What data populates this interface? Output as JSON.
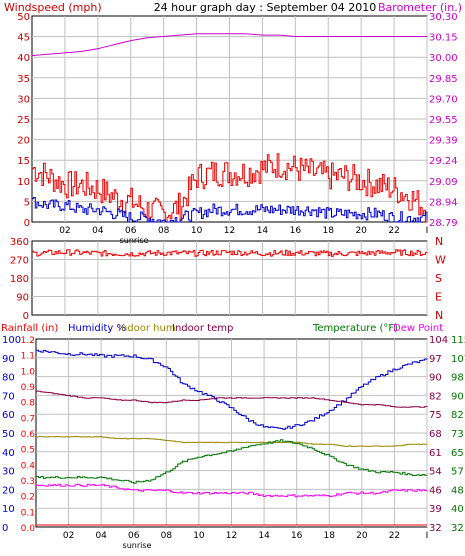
{
  "charts": {
    "wind": {
      "title": "24 hour graph day : September 04 2010",
      "left_label": "Windspeed (mph)",
      "right_label": "Barometer (in.)",
      "left_ticks": [
        "50",
        "45",
        "40",
        "35",
        "30",
        "25",
        "20",
        "15",
        "10",
        "5",
        "0"
      ],
      "right_ticks": [
        "30.30",
        "30.15",
        "30.00",
        "29.85",
        "29.70",
        "29.55",
        "29.39",
        "29.24",
        "29.09",
        "28.94",
        "28.79"
      ],
      "x_ticks": [
        "02",
        "04",
        "06",
        "08",
        "10",
        "12",
        "14",
        "16",
        "18",
        "20",
        "22",
        "I"
      ],
      "sunrise_label": "sunrise"
    },
    "direction": {
      "left_ticks": [
        "360",
        "270",
        "180",
        "90",
        "0"
      ],
      "right_ticks": [
        "N",
        "W",
        "S",
        "E",
        "N"
      ]
    },
    "bottom": {
      "legend": {
        "rainfall": "Rainfall (in)",
        "humidity": "Humidity %",
        "indoor_hum": "Indoor hum",
        "indoor_temp": "Indoor temp",
        "temperature": "Temperature (°F)",
        "dew_point": "Dew Point"
      },
      "rain_ticks": [
        "1.2",
        "1.1",
        "1.0",
        "0.9",
        "0.8",
        "0.7",
        "0.6",
        "0.5",
        "0.4",
        "0.3",
        "0.2",
        "0.1",
        "0.0"
      ],
      "hum_ticks": [
        "100",
        "90",
        "80",
        "70",
        "60",
        "50",
        "40",
        "30",
        "20",
        "10",
        "0"
      ],
      "temp_ticks": [
        "104",
        "97",
        "90",
        "82",
        "75",
        "68",
        "61",
        "54",
        "46",
        "39",
        "32"
      ],
      "indoor_temp_ticks": [
        "115",
        "107",
        "98",
        "90",
        "82",
        "73",
        "65",
        "57",
        "48",
        "40",
        "32"
      ],
      "x_ticks": [
        "02",
        "04",
        "06",
        "08",
        "10",
        "12",
        "14",
        "16",
        "18",
        "20",
        "22",
        "I"
      ],
      "sunrise_label": "sunrise"
    }
  },
  "colors": {
    "axis_red": "#cc0000",
    "baro_magenta": "#cc00cc",
    "wind_red": "#ee0000",
    "gust_blue": "#0000cc",
    "humidity_blue": "#0000cc",
    "indoor_hum_olive": "#998800",
    "indoor_temp_maroon": "#880044",
    "temp_green": "#007700",
    "dew_magenta": "#ff00ff",
    "rain_red": "#ff0000",
    "grid": "#c0c0c0"
  },
  "chart_data": [
    {
      "type": "line",
      "title": "24 hour graph day : September 04 2010",
      "xlabel": "",
      "x_ticks": [
        "02",
        "04",
        "06",
        "08",
        "10",
        "12",
        "14",
        "16",
        "18",
        "20",
        "22",
        "I"
      ],
      "y_left": {
        "label": "Windspeed (mph)",
        "lim": [
          0,
          50
        ]
      },
      "y_right": {
        "label": "Barometer (in.)",
        "lim": [
          28.79,
          30.3
        ]
      },
      "x": [
        0,
        1,
        2,
        3,
        4,
        5,
        6,
        7,
        8,
        9,
        10,
        11,
        12,
        13,
        14,
        15,
        16,
        17,
        18,
        19,
        20,
        21,
        22,
        23,
        24
      ],
      "series": [
        {
          "name": "Windspeed (mph)",
          "axis": "left",
          "values": [
            13,
            11,
            9,
            9,
            8,
            6,
            5,
            3,
            2,
            4,
            11,
            12,
            12,
            12,
            13,
            14,
            13,
            12,
            11,
            11,
            10,
            9,
            8,
            6,
            3
          ]
        },
        {
          "name": "",
          "axis": "left",
          "values": [
            5,
            4,
            4,
            3,
            3,
            2,
            1,
            1,
            0,
            1,
            2,
            3,
            3,
            3,
            3,
            3,
            3,
            3,
            2,
            2,
            2,
            2,
            1,
            1,
            1
          ]
        },
        {
          "name": "Barometer (in.)",
          "axis": "right",
          "values": [
            30.01,
            30.02,
            30.03,
            30.04,
            30.06,
            30.09,
            30.12,
            30.14,
            30.15,
            30.16,
            30.17,
            30.17,
            30.17,
            30.17,
            30.16,
            30.16,
            30.15,
            30.15,
            30.15,
            30.15,
            30.15,
            30.15,
            30.15,
            30.15,
            30.15
          ]
        }
      ]
    },
    {
      "type": "line",
      "xlabel": "",
      "y_left": {
        "label": "",
        "lim": [
          0,
          360
        ]
      },
      "y_right_ticks": [
        "N",
        "W",
        "S",
        "E",
        "N"
      ],
      "x": [
        0,
        2,
        4,
        6,
        8,
        10,
        12,
        14,
        16,
        18,
        20,
        22,
        24
      ],
      "series": [
        {
          "name": "",
          "values": [
            300,
            305,
            300,
            298,
            302,
            300,
            305,
            300,
            302,
            298,
            300,
            305,
            300
          ]
        }
      ]
    },
    {
      "type": "line",
      "x": [
        0,
        1,
        2,
        3,
        4,
        5,
        6,
        7,
        8,
        9,
        10,
        11,
        12,
        13,
        14,
        15,
        16,
        17,
        18,
        19,
        20,
        21,
        22,
        23,
        24
      ],
      "axes": {
        "Rainfall (in)": [
          0.0,
          1.2
        ],
        "Humidity %": [
          0,
          100
        ],
        "Temperature (°F)": [
          32,
          104
        ],
        "Indoor temp": [
          32,
          115
        ]
      },
      "series": [
        {
          "name": "Rainfall (in)",
          "axis": "Rainfall (in)",
          "values": [
            0,
            0,
            0,
            0,
            0,
            0,
            0,
            0,
            0,
            0,
            0,
            0,
            0,
            0,
            0,
            0,
            0,
            0,
            0,
            0,
            0,
            0,
            0,
            0,
            0
          ]
        },
        {
          "name": "Humidity %",
          "axis": "Humidity %",
          "values": [
            94,
            93,
            92,
            92,
            91,
            91,
            91,
            89,
            85,
            76,
            72,
            68,
            63,
            57,
            53,
            52,
            54,
            57,
            62,
            68,
            75,
            80,
            84,
            87,
            89
          ]
        },
        {
          "name": "Indoor hum",
          "axis": "Humidity %",
          "values": [
            48,
            48,
            48,
            48,
            48,
            47,
            47,
            47,
            46,
            45,
            45,
            45,
            45,
            45,
            45,
            45,
            45,
            44,
            44,
            43,
            43,
            43,
            43,
            44,
            44
          ]
        },
        {
          "name": "Indoor temp",
          "axis": "Indoor temp",
          "values": [
            92,
            91,
            90,
            89,
            89,
            88,
            88,
            87,
            87,
            88,
            88,
            89,
            89,
            89,
            89,
            89,
            89,
            89,
            88,
            87,
            86,
            86,
            85,
            85,
            85
          ]
        },
        {
          "name": "Temperature (°F)",
          "axis": "Temperature (°F)",
          "values": [
            51,
            51,
            51,
            51,
            51,
            50,
            49,
            50,
            53,
            57,
            59,
            60,
            61,
            63,
            64,
            65,
            64,
            62,
            59,
            56,
            54,
            53,
            53,
            52,
            52
          ]
        },
        {
          "name": "Dew Point",
          "axis": "Temperature (°F)",
          "values": [
            48,
            48,
            48,
            48,
            48,
            47,
            46,
            46,
            46,
            45,
            45,
            45,
            45,
            45,
            44,
            44,
            44,
            44,
            44,
            45,
            45,
            45,
            46,
            46,
            46
          ]
        }
      ]
    }
  ]
}
